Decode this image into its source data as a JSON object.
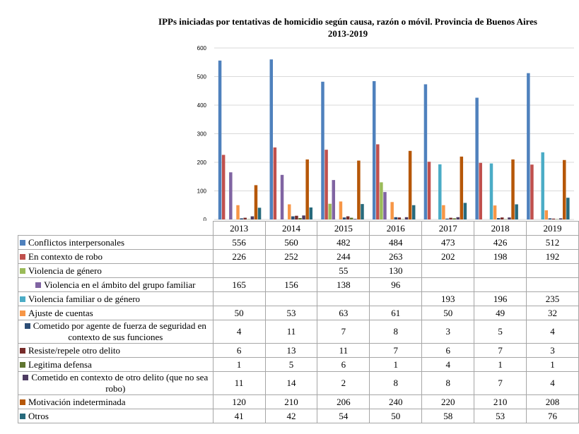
{
  "chart_data": {
    "type": "bar",
    "title": "IPPs iniciadas por tentativas de homicidio según causa, razón o móvil. Provincia de Buenos Aires",
    "subtitle": "2013-2019",
    "categories": [
      "2013",
      "2014",
      "2015",
      "2016",
      "2017",
      "2018",
      "2019"
    ],
    "ylim": [
      0,
      600
    ],
    "yticks": [
      0,
      100,
      200,
      300,
      400,
      500,
      600
    ],
    "grid": true,
    "series": [
      {
        "name": "Conflictos interpersonales",
        "color": "#4f81bd",
        "values": [
          556,
          560,
          482,
          484,
          473,
          426,
          512
        ]
      },
      {
        "name": "En contexto de robo",
        "color": "#c0504d",
        "values": [
          226,
          252,
          244,
          263,
          202,
          198,
          192
        ]
      },
      {
        "name": "Violencia de género",
        "color": "#9bbb59",
        "values": [
          null,
          null,
          55,
          130,
          null,
          null,
          null
        ]
      },
      {
        "name": "Violencia en el ámbito del grupo familiar",
        "color": "#8064a2",
        "values": [
          165,
          156,
          138,
          96,
          null,
          null,
          null
        ]
      },
      {
        "name": "Violencia familiar o de género",
        "color": "#4bacc6",
        "values": [
          null,
          null,
          null,
          null,
          193,
          196,
          235
        ]
      },
      {
        "name": "Ajuste de cuentas",
        "color": "#f79646",
        "values": [
          50,
          53,
          63,
          61,
          50,
          49,
          32
        ]
      },
      {
        "name": "Cometido por agente de fuerza de seguridad en contexto de sus funciones",
        "color": "#2c4d75",
        "values": [
          4,
          11,
          7,
          8,
          3,
          5,
          4
        ]
      },
      {
        "name": "Resiste/repele otro delito",
        "color": "#772c2a",
        "values": [
          6,
          13,
          11,
          7,
          6,
          7,
          3
        ]
      },
      {
        "name": "Legitima defensa",
        "color": "#5f7530",
        "values": [
          1,
          5,
          6,
          1,
          4,
          1,
          1
        ]
      },
      {
        "name": "Cometido en contexto de otro delito (que no sea robo)",
        "color": "#4d3b62",
        "values": [
          11,
          14,
          2,
          8,
          8,
          7,
          4
        ]
      },
      {
        "name": "Motivación indeterminada",
        "color": "#b65708",
        "values": [
          120,
          210,
          206,
          240,
          220,
          210,
          208
        ]
      },
      {
        "name": "Otros",
        "color": "#276a7c",
        "values": [
          41,
          42,
          54,
          50,
          58,
          53,
          76
        ]
      }
    ]
  }
}
